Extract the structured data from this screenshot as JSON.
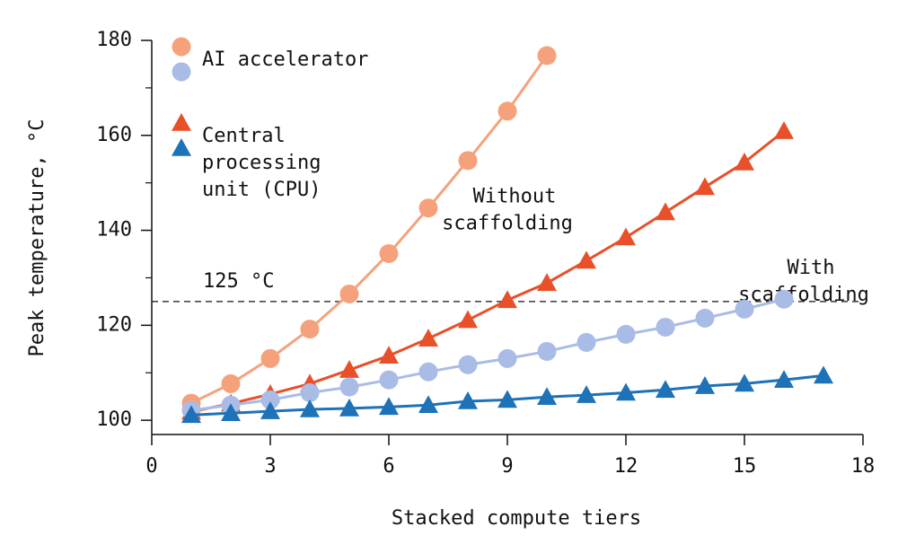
{
  "chart_data": {
    "type": "line",
    "x_label": "Stacked compute tiers",
    "y_label": "Peak temperature, °C",
    "xlim": [
      0,
      18
    ],
    "xticks": [
      0,
      3,
      6,
      9,
      12,
      15,
      18
    ],
    "ylim": [
      97,
      180
    ],
    "yticks": [
      100,
      120,
      140,
      160,
      180
    ],
    "yminorticks": [
      110,
      130,
      150,
      170
    ],
    "threshold": {
      "value": 125,
      "label": "125 °C"
    },
    "annotations": [
      {
        "lines": [
          "Without",
          "scaffolding"
        ],
        "x": 9,
        "y": 147
      },
      {
        "lines": [
          "With",
          "scaffolding"
        ],
        "x": 16.5,
        "y": 132
      }
    ],
    "legend": [
      {
        "lines": [
          "AI accelerator"
        ],
        "marker": "circle",
        "colors": [
          "#f5a27c",
          "#a9bce6"
        ]
      },
      {
        "lines": [
          "Central",
          "processing",
          "unit (CPU)"
        ],
        "marker": "triangle",
        "colors": [
          "#e8502a",
          "#1d72b8"
        ]
      }
    ],
    "series": [
      {
        "marker": "circle",
        "color": "#f5a27c",
        "x": [
          1,
          2,
          3,
          4,
          5,
          6,
          7,
          8,
          9,
          10
        ],
        "values": [
          103.6,
          107.7,
          113,
          119.2,
          126.6,
          135.1,
          144.7,
          154.7,
          165.1,
          176.8
        ]
      },
      {
        "marker": "triangle",
        "color": "#e8502a",
        "x": [
          1,
          2,
          3,
          4,
          5,
          6,
          7,
          8,
          9,
          10,
          11,
          12,
          13,
          14,
          15,
          16
        ],
        "values": [
          101.8,
          103.5,
          105.5,
          107.7,
          110.6,
          113.6,
          117.2,
          121.1,
          125.3,
          128.9,
          133.6,
          138.5,
          143.8,
          149.1,
          154.3,
          160.9
        ]
      },
      {
        "marker": "circle",
        "color": "#a9bce6",
        "x": [
          1,
          2,
          3,
          4,
          5,
          6,
          7,
          8,
          9,
          10,
          11,
          12,
          13,
          14,
          15,
          16
        ],
        "values": [
          102.1,
          103.2,
          104.3,
          105.8,
          107,
          108.5,
          110.2,
          111.7,
          113,
          114.5,
          116.4,
          118.1,
          119.6,
          121.5,
          123.4,
          125.5
        ]
      },
      {
        "marker": "triangle",
        "color": "#1d72b8",
        "x": [
          1,
          2,
          3,
          4,
          5,
          6,
          7,
          8,
          9,
          10,
          11,
          12,
          13,
          14,
          15,
          16,
          17
        ],
        "values": [
          101.1,
          101.5,
          101.9,
          102.3,
          102.5,
          102.8,
          103.2,
          104,
          104.3,
          104.9,
          105.3,
          105.8,
          106.4,
          107.2,
          107.7,
          108.5,
          109.4
        ]
      }
    ]
  }
}
